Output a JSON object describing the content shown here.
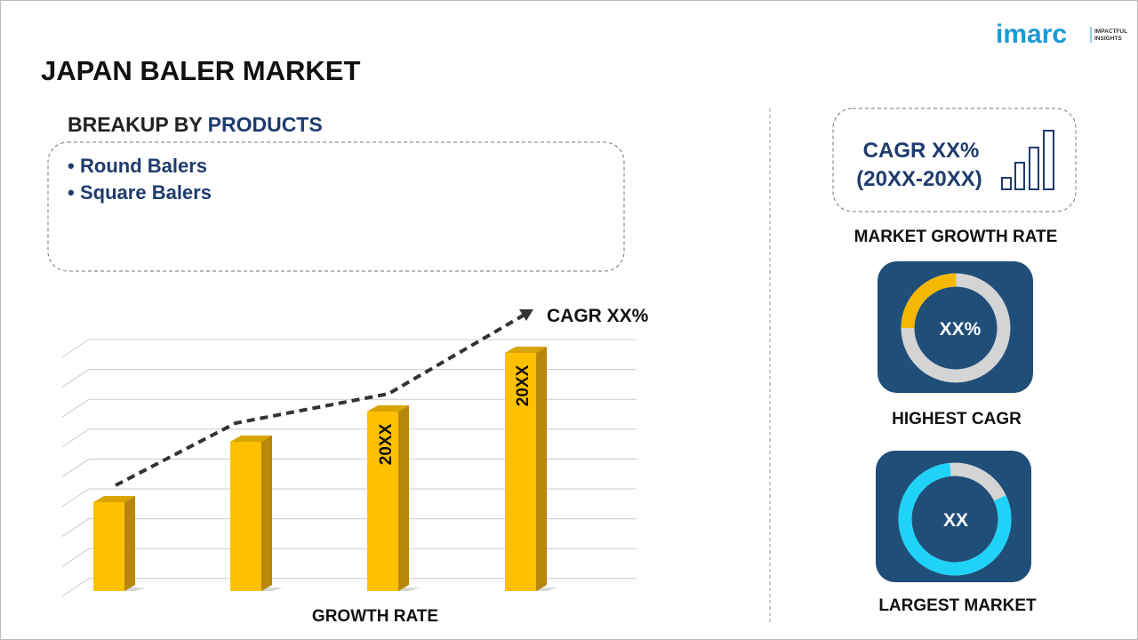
{
  "header": {
    "title": "JAPAN BALER MARKET",
    "logo": "imarc",
    "logo_tagline_1": "IMPACTFUL",
    "logo_tagline_2": "INSIGHTS"
  },
  "breakup": {
    "prefix": "BREAKUP BY",
    "highlight": "PRODUCTS",
    "items": [
      "Round Balers",
      "Square Balers"
    ]
  },
  "growth_chart": {
    "bar_labels": [
      "20XX",
      "20XX"
    ],
    "cagr": "CAGR XX%",
    "caption": "GROWTH RATE"
  },
  "market_growth": {
    "cagr": "CAGR XX%",
    "period": "(20XX-20XX)",
    "caption": "MARKET GROWTH RATE"
  },
  "highest_cagr": {
    "value": "XX%",
    "caption": "HIGHEST CAGR"
  },
  "largest_market": {
    "value": "XX",
    "caption": "LARGEST MARKET"
  }
}
